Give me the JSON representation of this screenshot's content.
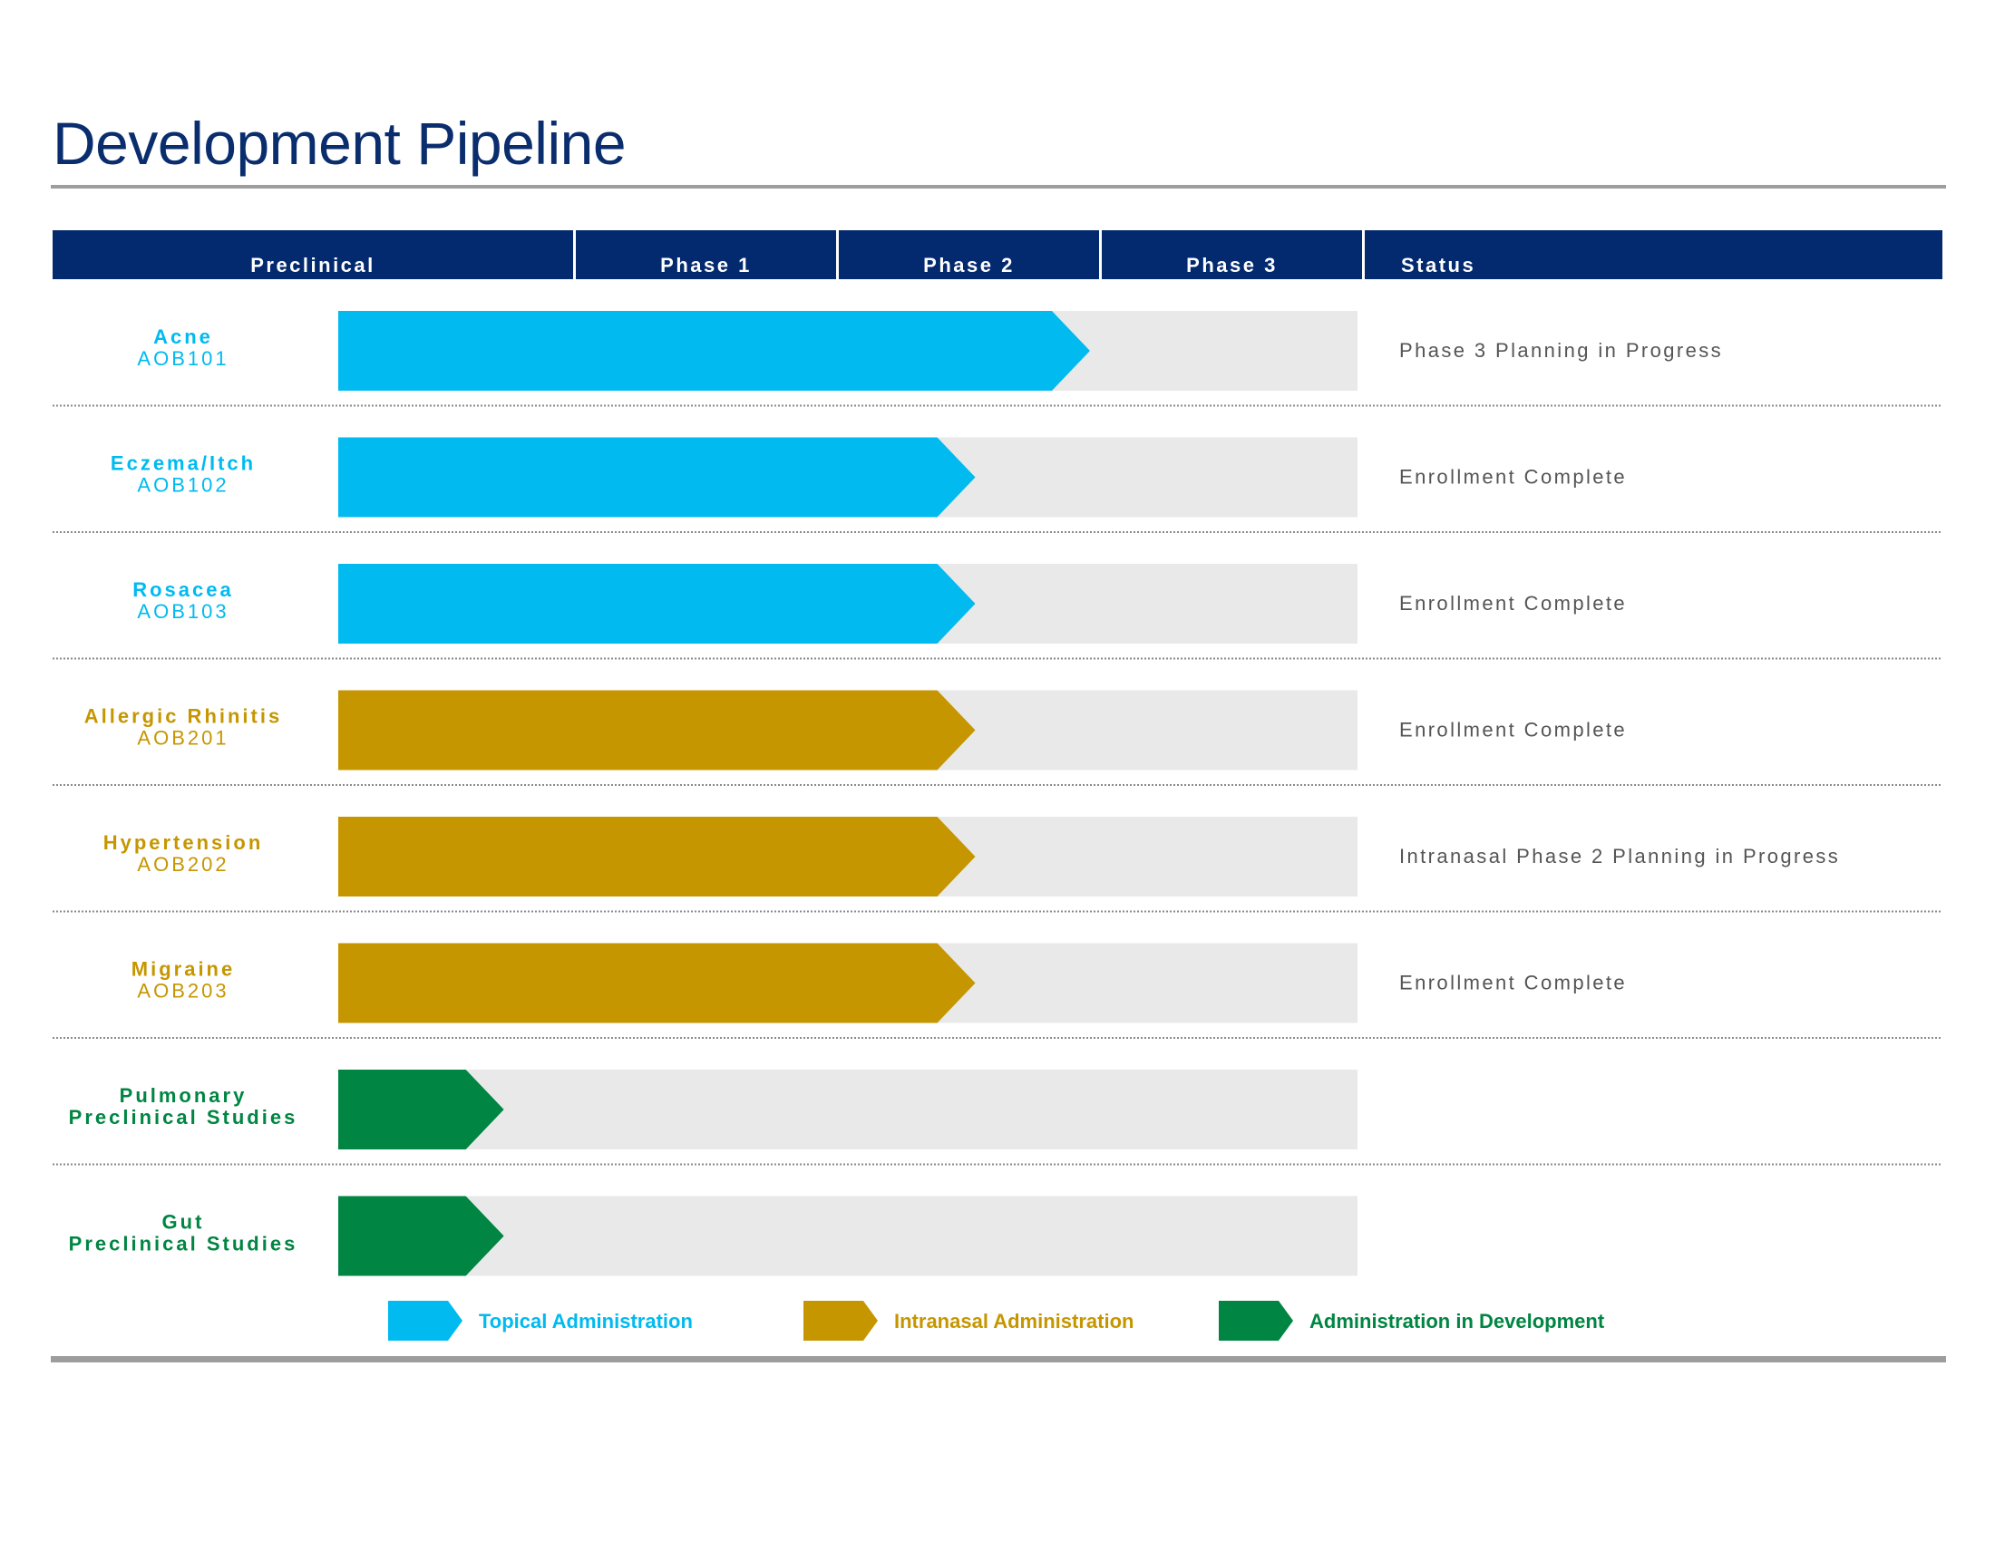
{
  "title": "Development Pipeline",
  "header": {
    "stages": [
      "Preclinical",
      "Phase 1",
      "Phase 2",
      "Phase 3"
    ],
    "status_label": "Status"
  },
  "colors": {
    "header": "#03296f",
    "track": "#e8e9e8",
    "topical": "#00baf0",
    "intranasal": "#c69600",
    "development": "#008542",
    "status_text": "#555555"
  },
  "chart_data": {
    "type": "bar",
    "title": "Development Pipeline",
    "categories": [
      "Preclinical",
      "Phase 1",
      "Phase 2",
      "Phase 3"
    ],
    "value_unit": "stages completed (0-4)",
    "xlim": [
      0,
      4
    ],
    "programs": [
      {
        "indication": "Acne",
        "code": "AOB101",
        "route": "topical",
        "progress": 2.95,
        "status": "Phase 3 Planning in Progress"
      },
      {
        "indication": "Eczema/Itch",
        "code": "AOB102",
        "route": "topical",
        "progress": 2.5,
        "status": "Enrollment Complete"
      },
      {
        "indication": "Rosacea",
        "code": "AOB103",
        "route": "topical",
        "progress": 2.5,
        "status": "Enrollment Complete"
      },
      {
        "indication": "Allergic Rhinitis",
        "code": "AOB201",
        "route": "intranasal",
        "progress": 2.5,
        "status": "Enrollment Complete"
      },
      {
        "indication": "Hypertension",
        "code": "AOB202",
        "route": "intranasal",
        "progress": 2.5,
        "status": "Intranasal Phase 2 Planning in Progress"
      },
      {
        "indication": "Migraine",
        "code": "AOB203",
        "route": "intranasal",
        "progress": 2.5,
        "status": "Enrollment Complete"
      },
      {
        "indication": "Pulmonary",
        "code": "Preclinical Studies",
        "route": "development",
        "progress": 0.65,
        "status": ""
      },
      {
        "indication": "Gut",
        "code": "Preclinical Studies",
        "route": "development",
        "progress": 0.65,
        "status": ""
      }
    ],
    "legend": [
      {
        "route": "topical",
        "label": "Topical Administration"
      },
      {
        "route": "intranasal",
        "label": "Intranasal Administration"
      },
      {
        "route": "development",
        "label": "Administration in Development"
      }
    ]
  }
}
